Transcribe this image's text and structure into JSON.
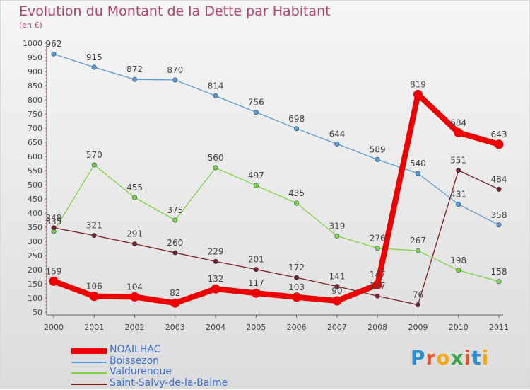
{
  "chart_data": {
    "type": "line",
    "title": "Evolution du Montant de la Dette par Habitant",
    "subtitle": "(en €)",
    "x": [
      "2000",
      "2001",
      "2002",
      "2003",
      "2004",
      "2005",
      "2006",
      "2007",
      "2008",
      "2009",
      "2010",
      "2011"
    ],
    "ylim": [
      50,
      1000
    ],
    "yticks": [
      50,
      100,
      150,
      200,
      250,
      300,
      350,
      400,
      450,
      500,
      550,
      600,
      650,
      700,
      750,
      800,
      850,
      900,
      950,
      1000
    ],
    "grid": false,
    "legend_position": "bottom-left",
    "series": [
      {
        "name": "NOAILHAC",
        "color": "#ee0000",
        "values": [
          159,
          106,
          104,
          82,
          132,
          117,
          103,
          90,
          147,
          819,
          684,
          643
        ]
      },
      {
        "name": "Boissezon",
        "color": "#5b9bd5",
        "values": [
          962,
          915,
          872,
          870,
          814,
          756,
          698,
          644,
          589,
          540,
          431,
          358
        ]
      },
      {
        "name": "Valdurenque",
        "color": "#7fd342",
        "values": [
          335,
          570,
          455,
          375,
          560,
          497,
          435,
          319,
          276,
          267,
          198,
          158
        ]
      },
      {
        "name": "Saint-Salvy-de-la-Balme",
        "color": "#7b2020",
        "values": [
          348,
          321,
          291,
          260,
          229,
          201,
          172,
          141,
          107,
          76,
          551,
          484
        ]
      }
    ]
  },
  "branding": {
    "logo_text": "Proxiti"
  }
}
